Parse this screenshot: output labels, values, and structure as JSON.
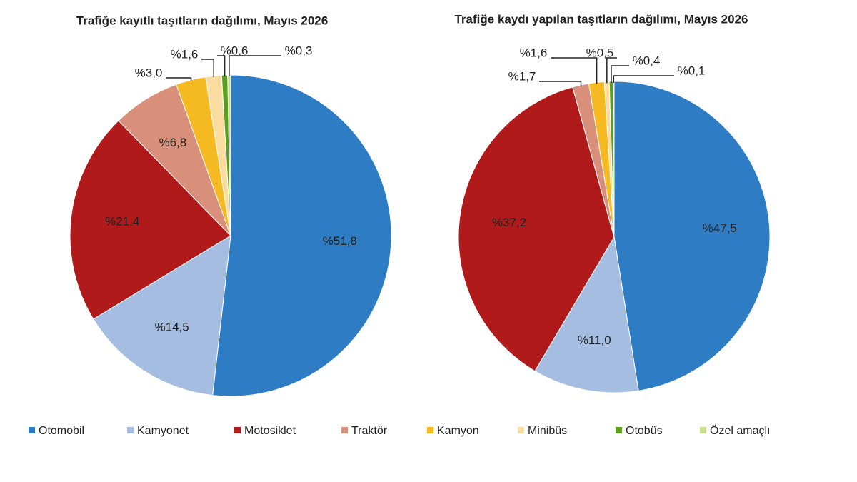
{
  "chart_data": [
    {
      "type": "pie",
      "title": "Trafiğe kayıtlı taşıtların dağılımı, Mayıs 2026",
      "categories": [
        "Otomobil",
        "Kamyonet",
        "Motosiklet",
        "Traktör",
        "Kamyon",
        "Minibüs",
        "Otobüs",
        "Özel amaçlı"
      ],
      "colors": [
        "#2e7dc4",
        "#a4bde0",
        "#b01a1a",
        "#d9907a",
        "#f5b921",
        "#fbdca0",
        "#5a9e1e",
        "#c6dd94"
      ],
      "values": [
        51.8,
        14.5,
        21.4,
        6.8,
        3.0,
        1.6,
        0.6,
        0.3
      ],
      "value_labels": [
        "%51,8",
        "%14,5",
        "%21,4",
        "%6,8",
        "%3,0",
        "%1,6",
        "%0,6",
        "%0,3"
      ]
    },
    {
      "type": "pie",
      "title": "Trafiğe kaydı yapılan taşıtların dağılımı, Mayıs 2026",
      "values": [
        47.5,
        11.0,
        37.2,
        1.7,
        1.6,
        0.5,
        0.4,
        0.1
      ],
      "value_labels": [
        "%47,5",
        "%11,0",
        "%37,2",
        "%1,7",
        "%1,6",
        "%0,5",
        "%0,4",
        "%0,1"
      ]
    }
  ]
}
